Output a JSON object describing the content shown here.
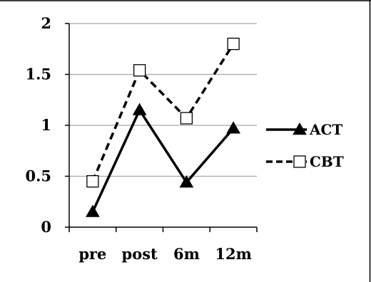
{
  "chart_data": {
    "type": "line",
    "categories": [
      "pre",
      "post",
      "6m",
      "12m"
    ],
    "series": [
      {
        "name": "ACT",
        "values": [
          0.15,
          1.15,
          0.44,
          0.97
        ],
        "line_style": "solid",
        "marker": "filled-triangle",
        "color": "#000000"
      },
      {
        "name": "CBT",
        "values": [
          0.45,
          1.54,
          1.07,
          1.8
        ],
        "line_style": "dashed",
        "marker": "open-square",
        "color": "#000000"
      }
    ],
    "yticks": [
      "0",
      "0.5",
      "1",
      "1.5",
      "2"
    ],
    "ylim": [
      0,
      2
    ],
    "grid": "horizontal",
    "legend_position": "right"
  }
}
